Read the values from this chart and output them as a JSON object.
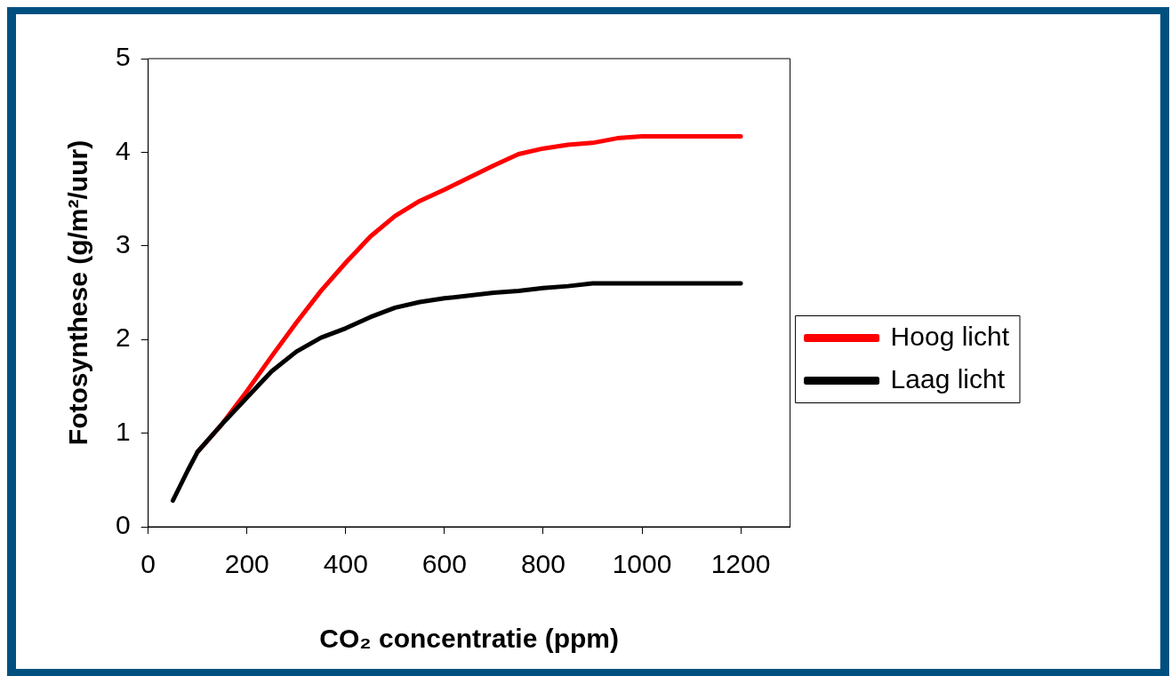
{
  "chart_data": {
    "type": "line",
    "xlabel": "CO₂ concentratie (ppm)",
    "ylabel": "Fotosynthese (g/m²/uur)",
    "x": [
      50,
      80,
      100,
      150,
      200,
      250,
      300,
      350,
      400,
      450,
      500,
      550,
      600,
      700,
      750,
      800,
      850,
      900,
      950,
      1000,
      1200
    ],
    "series": [
      {
        "name": "Hoog licht",
        "color": "#ff0000",
        "values": [
          null,
          null,
          0.8,
          1.1,
          1.45,
          1.82,
          2.18,
          2.52,
          2.82,
          3.1,
          3.32,
          3.48,
          3.6,
          3.86,
          3.98,
          4.04,
          4.08,
          4.1,
          4.15,
          4.17,
          4.17
        ]
      },
      {
        "name": "Laag licht",
        "color": "#000000",
        "values": [
          0.28,
          0.6,
          0.8,
          1.1,
          1.38,
          1.66,
          1.87,
          2.02,
          2.12,
          2.24,
          2.34,
          2.4,
          2.44,
          2.5,
          2.52,
          2.55,
          2.57,
          2.6,
          2.6,
          2.6,
          2.6
        ]
      }
    ],
    "xlim": [
      0,
      1300
    ],
    "xticks": [
      0,
      200,
      400,
      600,
      800,
      1000,
      1200
    ],
    "ylim": [
      0,
      5
    ],
    "yticks": [
      0,
      1,
      2,
      3,
      4,
      5
    ],
    "grid": false,
    "legend": "right",
    "marker": "none",
    "line_style": "solid"
  }
}
